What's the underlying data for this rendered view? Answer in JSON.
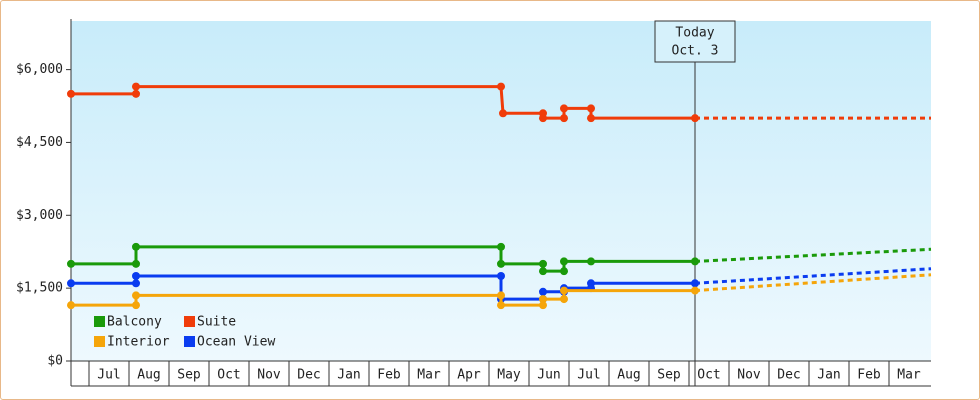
{
  "chart_data": {
    "type": "line",
    "xlim": [
      -0.45,
      21.05
    ],
    "ylim": [
      0,
      7000
    ],
    "yticks": [
      {
        "value": 0,
        "label": "$0"
      },
      {
        "value": 1500,
        "label": "$1,500"
      },
      {
        "value": 3000,
        "label": "$3,000"
      },
      {
        "value": 4500,
        "label": "$4,500"
      },
      {
        "value": 6000,
        "label": "$6,000"
      }
    ],
    "xticks": [
      {
        "value": 0,
        "label": "Jul"
      },
      {
        "value": 1,
        "label": "Aug"
      },
      {
        "value": 2,
        "label": "Sep"
      },
      {
        "value": 3,
        "label": "Oct"
      },
      {
        "value": 4,
        "label": "Nov"
      },
      {
        "value": 5,
        "label": "Dec"
      },
      {
        "value": 6,
        "label": "Jan"
      },
      {
        "value": 7,
        "label": "Feb"
      },
      {
        "value": 8,
        "label": "Mar"
      },
      {
        "value": 9,
        "label": "Apr"
      },
      {
        "value": 10,
        "label": "May"
      },
      {
        "value": 11,
        "label": "Jun"
      },
      {
        "value": 12,
        "label": "Jul"
      },
      {
        "value": 13,
        "label": "Aug"
      },
      {
        "value": 14,
        "label": "Sep"
      },
      {
        "value": 15,
        "label": "Oct"
      },
      {
        "value": 16,
        "label": "Nov"
      },
      {
        "value": 17,
        "label": "Dec"
      },
      {
        "value": 18,
        "label": "Jan"
      },
      {
        "value": 19,
        "label": "Feb"
      },
      {
        "value": 20,
        "label": "Mar"
      }
    ],
    "today": {
      "x": 15.15,
      "label": [
        "Today",
        "Oct. 3"
      ]
    },
    "series": [
      {
        "name": "Suite",
        "color": "#f03c0a",
        "x": [
          -0.45,
          1.175,
          1.175,
          10.3,
          10.35,
          11.35,
          11.35,
          11.875,
          11.875,
          12.55,
          12.55,
          15.15
        ],
        "values": [
          5500,
          5500,
          5650,
          5650,
          5100,
          5100,
          5000,
          5000,
          5200,
          5200,
          5000,
          5000
        ],
        "projection": {
          "x": [
            15.15,
            21.05
          ],
          "values": [
            5000,
            5000
          ]
        }
      },
      {
        "name": "Balcony",
        "color": "#1a9a0a",
        "x": [
          -0.45,
          1.175,
          1.175,
          10.3,
          10.3,
          11.35,
          11.35,
          11.875,
          11.875,
          12.55,
          15.15
        ],
        "values": [
          2000,
          2000,
          2350,
          2350,
          2000,
          2000,
          1850,
          1850,
          2050,
          2050,
          2050
        ],
        "projection": {
          "x": [
            15.15,
            21.05
          ],
          "values": [
            2050,
            2300
          ]
        }
      },
      {
        "name": "Ocean View",
        "color": "#0a3cf0",
        "x": [
          -0.45,
          1.175,
          1.175,
          10.3,
          10.3,
          11.35,
          11.35,
          11.875,
          11.875,
          12.55,
          12.55,
          15.15
        ],
        "values": [
          1600,
          1600,
          1750,
          1750,
          1275,
          1275,
          1425,
          1425,
          1500,
          1500,
          1600,
          1600
        ],
        "projection": {
          "x": [
            15.15,
            21.05
          ],
          "values": [
            1600,
            1900
          ]
        }
      },
      {
        "name": "Interior",
        "color": "#f5a50a",
        "x": [
          -0.45,
          1.175,
          1.175,
          10.3,
          10.3,
          11.35,
          11.35,
          11.875,
          11.875,
          15.15
        ],
        "values": [
          1150,
          1150,
          1350,
          1350,
          1150,
          1150,
          1275,
          1275,
          1450,
          1450
        ],
        "projection": {
          "x": [
            15.15,
            21.05
          ],
          "values": [
            1450,
            1775
          ]
        }
      }
    ]
  }
}
